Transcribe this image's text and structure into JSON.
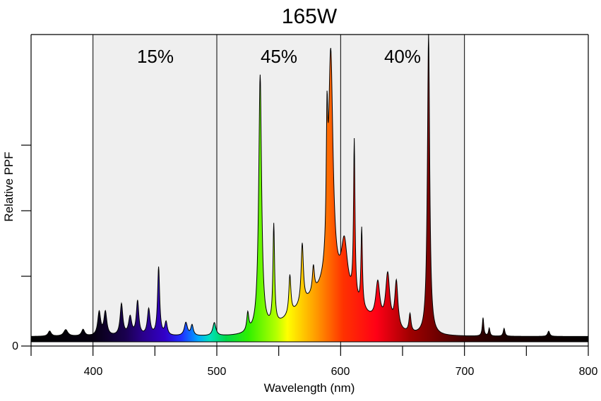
{
  "chart_data": {
    "type": "area",
    "title": "165W",
    "xlabel": "Wavelength (nm)",
    "ylabel": "Relative PPF",
    "xlim": [
      350,
      800
    ],
    "ylim": [
      0,
      1.0
    ],
    "x_ticks": [
      400,
      500,
      600,
      700,
      800
    ],
    "x_minor_ticks": [
      350,
      450,
      550,
      650,
      750
    ],
    "y_tick_labels": [
      "0"
    ],
    "y_minor_ticks": [
      0.25,
      0.5,
      0.75
    ],
    "grid": false,
    "bands": [
      {
        "name": "blue",
        "range": [
          400,
          500
        ],
        "percent": "15%"
      },
      {
        "name": "green",
        "range": [
          500,
          600
        ],
        "percent": "45%"
      },
      {
        "name": "red",
        "range": [
          600,
          700
        ],
        "percent": "40%"
      }
    ],
    "colors": {
      "band_fill": "#efefef",
      "band_line": "#000000",
      "outline": "#000000"
    },
    "baseline": 0.02,
    "series": [
      {
        "name": "Relative PPF",
        "peaks": [
          {
            "x": 365,
            "y": 0.02,
            "w": 1.5
          },
          {
            "x": 378,
            "y": 0.025,
            "w": 2.0
          },
          {
            "x": 392,
            "y": 0.025,
            "w": 1.5
          },
          {
            "x": 405,
            "y": 0.09,
            "w": 1.4
          },
          {
            "x": 410,
            "y": 0.09,
            "w": 1.4
          },
          {
            "x": 423,
            "y": 0.12,
            "w": 1.3
          },
          {
            "x": 430,
            "y": 0.07,
            "w": 1.5
          },
          {
            "x": 436,
            "y": 0.13,
            "w": 1.2
          },
          {
            "x": 445,
            "y": 0.1,
            "w": 1.3
          },
          {
            "x": 453,
            "y": 0.26,
            "w": 1.0
          },
          {
            "x": 459,
            "y": 0.05,
            "w": 1.2
          },
          {
            "x": 475,
            "y": 0.05,
            "w": 1.5
          },
          {
            "x": 480,
            "y": 0.04,
            "w": 1.2
          },
          {
            "x": 498,
            "y": 0.05,
            "w": 1.5
          },
          {
            "x": 525,
            "y": 0.07,
            "w": 1.0
          },
          {
            "x": 535,
            "y": 0.98,
            "w": 1.4
          },
          {
            "x": 546,
            "y": 0.38,
            "w": 0.8
          },
          {
            "x": 559,
            "y": 0.15,
            "w": 1.0
          },
          {
            "x": 569,
            "y": 0.23,
            "w": 1.1
          },
          {
            "x": 578,
            "y": 0.1,
            "w": 1.0
          },
          {
            "x": 589,
            "y": 0.45,
            "w": 0.7
          },
          {
            "x": 592,
            "y": 0.9,
            "w": 2.2
          },
          {
            "x": 603,
            "y": 0.2,
            "w": 3.0
          },
          {
            "x": 611,
            "y": 0.6,
            "w": 0.7
          },
          {
            "x": 617,
            "y": 0.3,
            "w": 0.7
          },
          {
            "x": 630,
            "y": 0.15,
            "w": 2.0
          },
          {
            "x": 638,
            "y": 0.2,
            "w": 2.0
          },
          {
            "x": 645,
            "y": 0.18,
            "w": 1.5
          },
          {
            "x": 656,
            "y": 0.07,
            "w": 1.0
          },
          {
            "x": 671,
            "y": 1.15,
            "w": 1.1
          },
          {
            "x": 715,
            "y": 0.07,
            "w": 0.7
          },
          {
            "x": 720,
            "y": 0.03,
            "w": 0.7
          },
          {
            "x": 732,
            "y": 0.03,
            "w": 0.8
          },
          {
            "x": 768,
            "y": 0.02,
            "w": 1.0
          }
        ],
        "broad": [
          {
            "x": 590,
            "y": 0.16,
            "w": 35
          }
        ]
      }
    ]
  }
}
